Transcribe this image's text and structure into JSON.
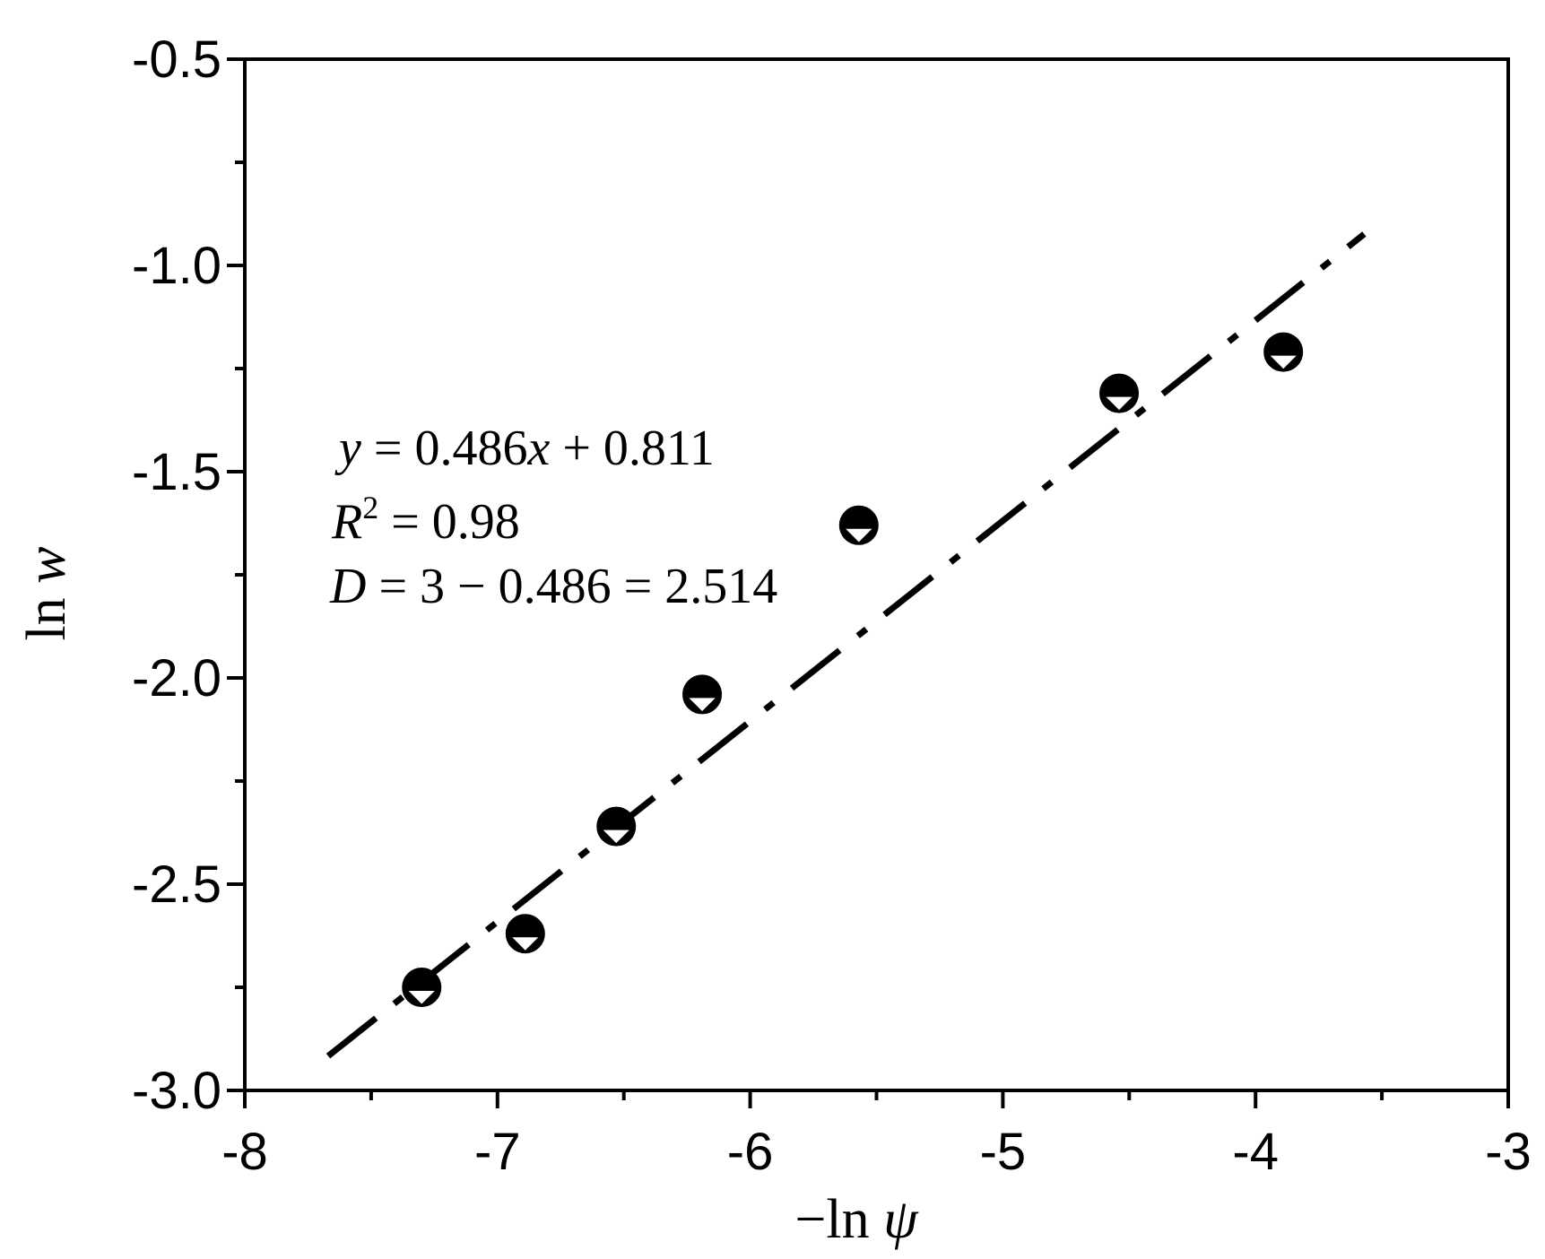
{
  "chart_data": {
    "type": "scatter",
    "title": "",
    "xlabel": {
      "prefix": "−ln",
      "var": "ψ"
    },
    "ylabel": {
      "prefix": "ln",
      "var": "w"
    },
    "xlim": [
      -8,
      -3
    ],
    "ylim": [
      -3.0,
      -0.5
    ],
    "xticks": [
      -8,
      -7,
      -6,
      -5,
      -4,
      -3
    ],
    "xtick_labels": [
      "-8",
      "-7",
      "-6",
      "-5",
      "-4",
      "-3"
    ],
    "yticks": [
      -3.0,
      -2.5,
      -2.0,
      -1.5,
      -1.0,
      -0.5
    ],
    "ytick_labels": [
      "-3.0",
      "-2.5",
      "-2.0",
      "-1.5",
      "-1.0",
      "-0.5"
    ],
    "grid": false,
    "series": [
      {
        "marker": "circle-with-triangle",
        "x": [
          -7.3,
          -6.89,
          -6.53,
          -6.19,
          -5.57,
          -4.54,
          -3.89
        ],
        "y": [
          -2.75,
          -2.62,
          -2.36,
          -2.04,
          -1.63,
          -1.31,
          -1.21
        ]
      }
    ],
    "fit_line": {
      "style": "dash-dot",
      "slope": 0.486,
      "intercept": 0.811,
      "x_range": [
        -7.67,
        -3.57
      ]
    },
    "annotations": {
      "equation": {
        "y": "y",
        "eq": " = 0.486",
        "x": "x",
        "rest": " + 0.811"
      },
      "r_squared": {
        "R": "R",
        "sup": "2",
        "rest": " = 0.98"
      },
      "dimension": {
        "D": "D",
        "rest": " = 3 − 0.486 = 2.514"
      }
    }
  }
}
